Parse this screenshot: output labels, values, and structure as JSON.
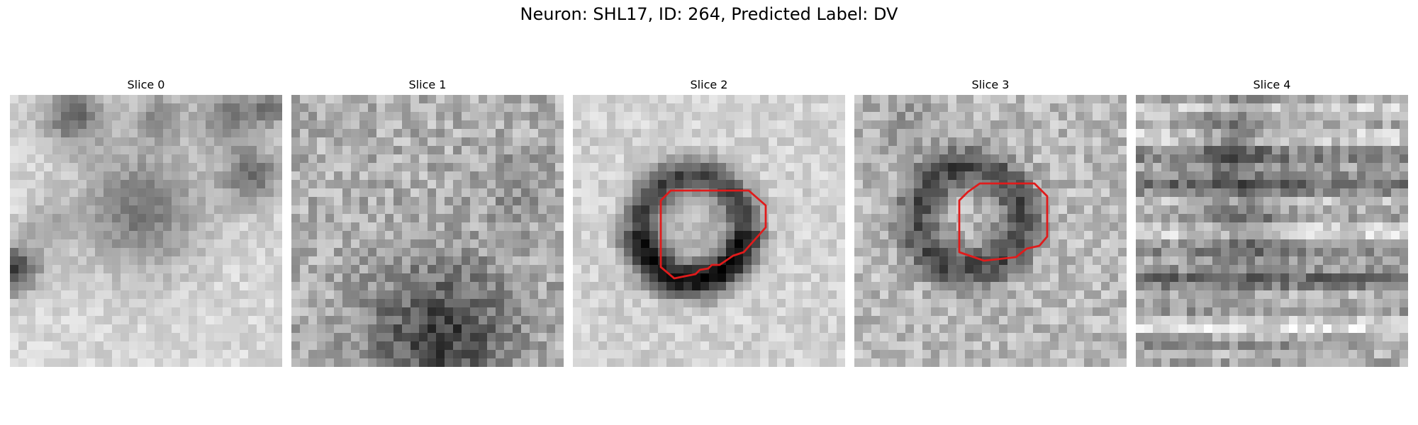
{
  "figure": {
    "title": "Neuron: SHL17, ID: 264, Predicted Label: DV"
  },
  "slices": [
    {
      "label": "Slice 0",
      "has_contour": false
    },
    {
      "label": "Slice 1",
      "has_contour": false
    },
    {
      "label": "Slice 2",
      "has_contour": true
    },
    {
      "label": "Slice 3",
      "has_contour": true
    },
    {
      "label": "Slice 4",
      "has_contour": false
    }
  ],
  "colors": {
    "contour": "#e01b1b",
    "background": "#ffffff"
  }
}
